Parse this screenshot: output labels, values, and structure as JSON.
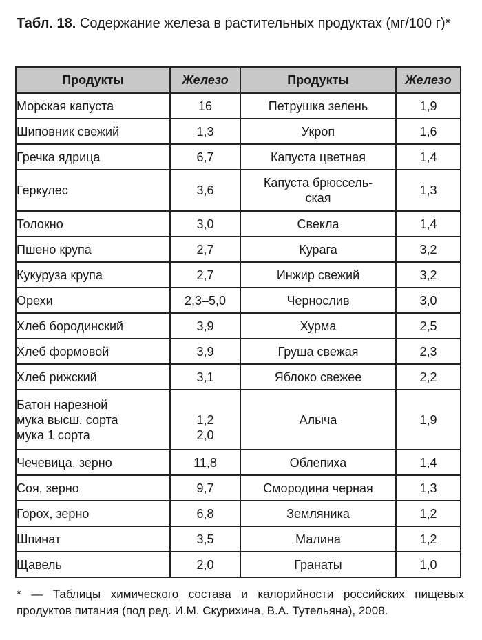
{
  "caption": {
    "label": "Табл. 18.",
    "text": "Содержание железа в растительных продуктах (мг/100 г)*"
  },
  "headers": [
    "Продукты",
    "Железо",
    "Продукты",
    "Железо"
  ],
  "rows": [
    [
      "Морская капуста",
      "16",
      "Петрушка зелень",
      "1,9"
    ],
    [
      "Шиповник свежий",
      "1,3",
      "Укроп",
      "1,6"
    ],
    [
      "Гречка ядрица",
      "6,7",
      "Капуста цветная",
      "1,4"
    ],
    [
      "Геркулес",
      "3,6",
      "Капуста брюссель-\nская",
      "1,3"
    ],
    [
      "Толокно",
      "3,0",
      "Свекла",
      "1,4"
    ],
    [
      "Пшено крупа",
      "2,7",
      "Курага",
      "3,2"
    ],
    [
      "Кукуруза крупа",
      "2,7",
      "Инжир свежий",
      "3,2"
    ],
    [
      "Орехи",
      "2,3–5,0",
      "Чернослив",
      "3,0"
    ],
    [
      "Хлеб бородинский",
      "3,9",
      "Хурма",
      "2,5"
    ],
    [
      "Хлеб формовой",
      "3,9",
      "Груша свежая",
      "2,3"
    ],
    [
      "Хлеб рижский",
      "3,1",
      "Яблоко свежее",
      "2,2"
    ],
    [
      "Батон нарезной\nмука высш. сорта\nмука 1 сорта",
      "\n1,2\n2,0",
      "Алыча",
      "1,9"
    ],
    [
      "Чечевица, зерно",
      "11,8",
      "Облепиха",
      "1,4"
    ],
    [
      "Соя, зерно",
      "9,7",
      "Смородина черная",
      "1,3"
    ],
    [
      "Горох, зерно",
      "6,8",
      "Земляника",
      "1,2"
    ],
    [
      "Шпинат",
      "3,5",
      "Малина",
      "1,2"
    ],
    [
      "Щавель",
      "2,0",
      "Гранаты",
      "1,0"
    ]
  ],
  "footnote": "* — Таблицы химического состава и калорийности российских пищевых продуктов питания (под ред. И.М. Скурихина, В.А. Тутельяна), 2008."
}
